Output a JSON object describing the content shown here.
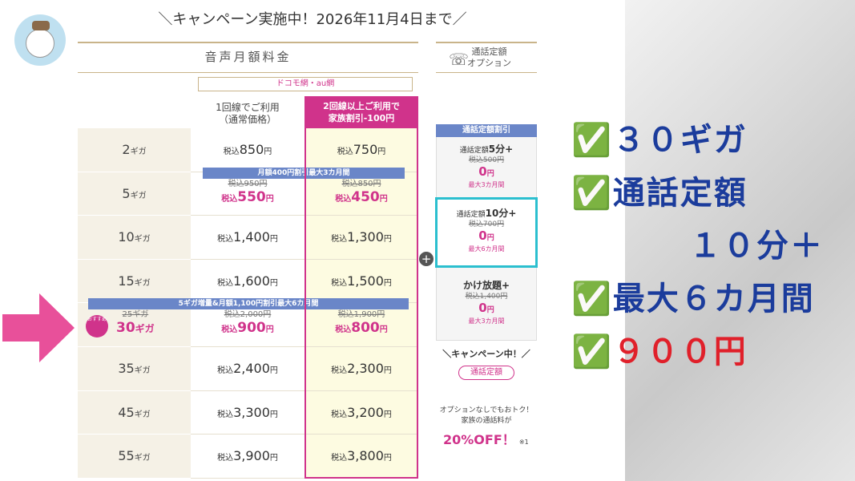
{
  "header": {
    "campaign": "＼キャンペーン実施中！2026年11月4日まで／"
  },
  "table": {
    "title": "音声月額料金",
    "network": "ドコモ網・au網",
    "col_single": [
      "1回線でご利用",
      "（通常価格）"
    ],
    "col_family": [
      "2回線以上ご利用で",
      "家族割引-100円"
    ],
    "rows": [
      {
        "gb": "2",
        "unit": "ギガ",
        "single": {
          "tax": "税込",
          "price": "850",
          "yen": "円"
        },
        "family": {
          "tax": "税込",
          "price": "750",
          "yen": "円"
        }
      },
      {
        "gb": "5",
        "unit": "ギガ",
        "banner": "月額400円割引最大3カ月間",
        "single": {
          "was": "税込950円",
          "tax": "税込",
          "price": "550",
          "yen": "円"
        },
        "family": {
          "was": "税込850円",
          "tax": "税込",
          "price": "450",
          "yen": "円"
        }
      },
      {
        "gb": "10",
        "unit": "ギガ",
        "single": {
          "tax": "税込",
          "price": "1,400",
          "yen": "円"
        },
        "family": {
          "tax": "税込",
          "price": "1,300",
          "yen": "円"
        }
      },
      {
        "gb": "15",
        "unit": "ギガ",
        "single": {
          "tax": "税込",
          "price": "1,600",
          "yen": "円"
        },
        "family": {
          "tax": "税込",
          "price": "1,500",
          "yen": "円"
        }
      },
      {
        "badge": "おすすめ",
        "gb_was": "25ギガ",
        "gb": "30",
        "unit": "ギガ",
        "banner": "5ギガ増量&月額1,100円割引最大6カ月間",
        "single": {
          "was": "税込2,000円",
          "tax": "税込",
          "price": "900",
          "yen": "円"
        },
        "family": {
          "was": "税込1,900円",
          "tax": "税込",
          "price": "800",
          "yen": "円"
        }
      },
      {
        "gb": "35",
        "unit": "ギガ",
        "single": {
          "tax": "税込",
          "price": "2,400",
          "yen": "円"
        },
        "family": {
          "tax": "税込",
          "price": "2,300",
          "yen": "円"
        }
      },
      {
        "gb": "45",
        "unit": "ギガ",
        "single": {
          "tax": "税込",
          "price": "3,300",
          "yen": "円"
        },
        "family": {
          "tax": "税込",
          "price": "3,200",
          "yen": "円"
        }
      },
      {
        "gb": "55",
        "unit": "ギガ",
        "single": {
          "tax": "税込",
          "price": "3,900",
          "yen": "円"
        },
        "family": {
          "tax": "税込",
          "price": "3,800",
          "yen": "円"
        }
      }
    ]
  },
  "option": {
    "title": [
      "通話定額",
      "オプション"
    ],
    "box_title": "通話定額割引",
    "items": [
      {
        "name": "通話定額",
        "name_bold": "5分+",
        "was": "税込500円",
        "price": "0",
        "yen": "円",
        "period": "最大3カ月間"
      },
      {
        "name": "通話定額",
        "name_bold": "10分+",
        "was": "税込700円",
        "price": "0",
        "yen": "円",
        "period": "最大6カ月間"
      },
      {
        "name_bold": "かけ放題+",
        "was": "税込1,400円",
        "price": "0",
        "yen": "円",
        "period": "最大3カ月間"
      }
    ],
    "campaign": "＼キャンペーン中！／",
    "button": "通話定額",
    "note": [
      "オプションなしでもおトク！",
      "家族の通話料が"
    ],
    "discount": "20%OFF！",
    "footnote": "※1"
  },
  "annotation": {
    "lines": [
      "✅３０ギガ",
      "✅通話定額",
      "１０分＋",
      "✅最大６カ月間"
    ],
    "price": "✅９００円"
  }
}
